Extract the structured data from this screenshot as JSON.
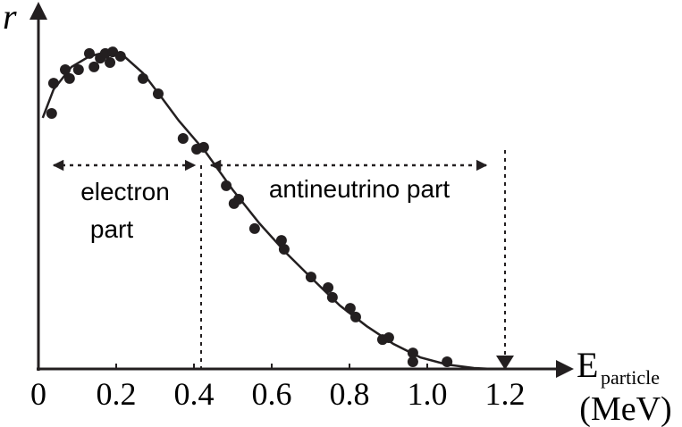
{
  "chart_data": {
    "type": "scatter",
    "ylabel": "r",
    "xlabel": "E",
    "xlabel_subscript": "particle",
    "xlabel_unit": "(MeV)",
    "xlim": [
      0,
      1.3
    ],
    "ylim": [
      0,
      1.15
    ],
    "xticks": [
      0,
      {
        "value": 0.2,
        "label": "0.2"
      },
      {
        "value": 0.4,
        "label": "0.4"
      },
      {
        "value": 0.6,
        "label": "0.6"
      },
      {
        "value": 0.8,
        "label": "0.8"
      },
      {
        "value": 1.0,
        "label": "1.0"
      },
      {
        "value": 1.2,
        "label": "1.2"
      }
    ],
    "color": "#231f20",
    "points": {
      "x": [
        0.034,
        0.039,
        0.069,
        0.08,
        0.103,
        0.131,
        0.143,
        0.159,
        0.172,
        0.184,
        0.191,
        0.211,
        0.269,
        0.308,
        0.372,
        0.407,
        0.425,
        0.483,
        0.503,
        0.515,
        0.556,
        0.625,
        0.632,
        0.701,
        0.745,
        0.756,
        0.802,
        0.816,
        0.885,
        0.901,
        0.963,
        0.963,
        1.051
      ],
      "y": [
        0.817,
        0.914,
        0.957,
        0.929,
        0.957,
        1.009,
        0.966,
        0.994,
        1.009,
        0.98,
        1.014,
        1.0,
        0.929,
        0.88,
        0.737,
        0.703,
        0.709,
        0.586,
        0.529,
        0.543,
        0.449,
        0.411,
        0.383,
        0.294,
        0.26,
        0.229,
        0.194,
        0.166,
        0.094,
        0.1,
        0.023,
        0.051,
        0.023
      ]
    },
    "curve": {
      "x": [
        0.011,
        0.039,
        0.085,
        0.131,
        0.177,
        0.223,
        0.269,
        0.315,
        0.361,
        0.43,
        0.499,
        0.568,
        0.637,
        0.706,
        0.775,
        0.844,
        0.913,
        0.982,
        1.051,
        1.12,
        1.166
      ],
      "y": [
        0.803,
        0.894,
        0.966,
        1.0,
        1.014,
        0.997,
        0.946,
        0.871,
        0.794,
        0.694,
        0.574,
        0.466,
        0.371,
        0.286,
        0.203,
        0.137,
        0.08,
        0.037,
        0.014,
        0.003,
        0.0
      ]
    },
    "annotations": {
      "electron_1": "electron",
      "electron_2": "part",
      "antineutrino": "antineutrino part"
    }
  }
}
